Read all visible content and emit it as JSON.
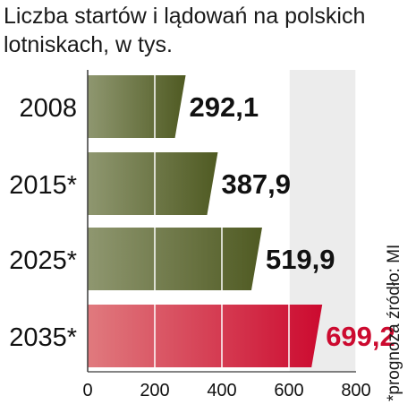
{
  "title": "Liczba startów i lądowań na polskich lotniskach, w tys.",
  "note": "*prognoza źródło: MI",
  "colors": {
    "olive_dark": "#4f5a22",
    "olive_light": "#8f9770",
    "red_dark": "#cc0a2f",
    "red_light": "#e07a7e",
    "grid": "#ffffff",
    "axis_band": "#ececec",
    "highlight_label": "#cc0a2f",
    "label": "#111111"
  },
  "chart_data": {
    "type": "bar",
    "orientation": "horizontal",
    "categories": [
      "2008",
      "2015*",
      "2025*",
      "2035*"
    ],
    "values": [
      292.1,
      387.9,
      519.9,
      699.2
    ],
    "value_labels": [
      "292,1",
      "387,9",
      "519,9",
      "699,2"
    ],
    "highlight_index": 3,
    "xlim": [
      0,
      800
    ],
    "x_ticks": [
      0,
      200,
      400,
      600,
      800
    ],
    "x_tick_labels": [
      "0",
      "200",
      "400",
      "600",
      "800"
    ],
    "grid": true
  }
}
